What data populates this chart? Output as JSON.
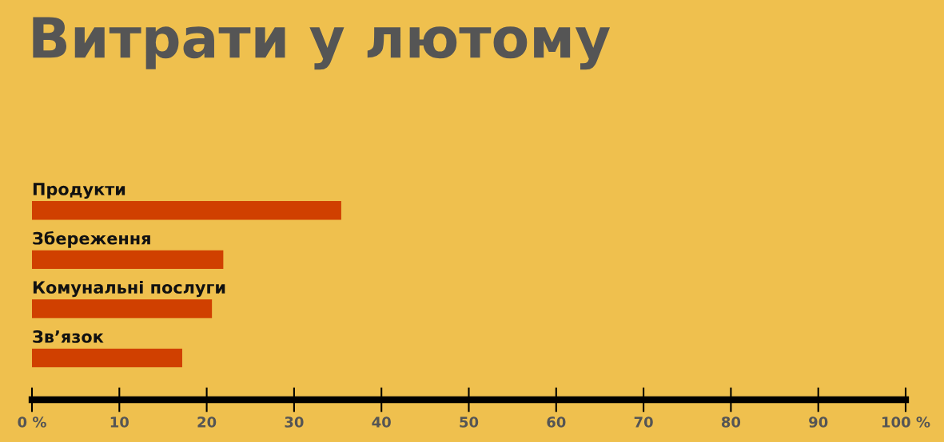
{
  "chart_data": {
    "type": "bar",
    "orientation": "horizontal",
    "title": "Витрати у лютому",
    "categories": [
      "Продукти",
      "Збереження",
      "Комунальні послуги",
      "Зв’язок"
    ],
    "values": [
      35.4,
      21.9,
      20.6,
      17.2
    ],
    "color": "#d04000",
    "xlim": [
      0,
      100
    ],
    "xticks": [
      {
        "value": 0,
        "label": "0 %"
      },
      10,
      20,
      30,
      40,
      50,
      60,
      70,
      80,
      90,
      {
        "value": 100,
        "label": "100 %"
      }
    ],
    "grid": false,
    "legend": false
  }
}
